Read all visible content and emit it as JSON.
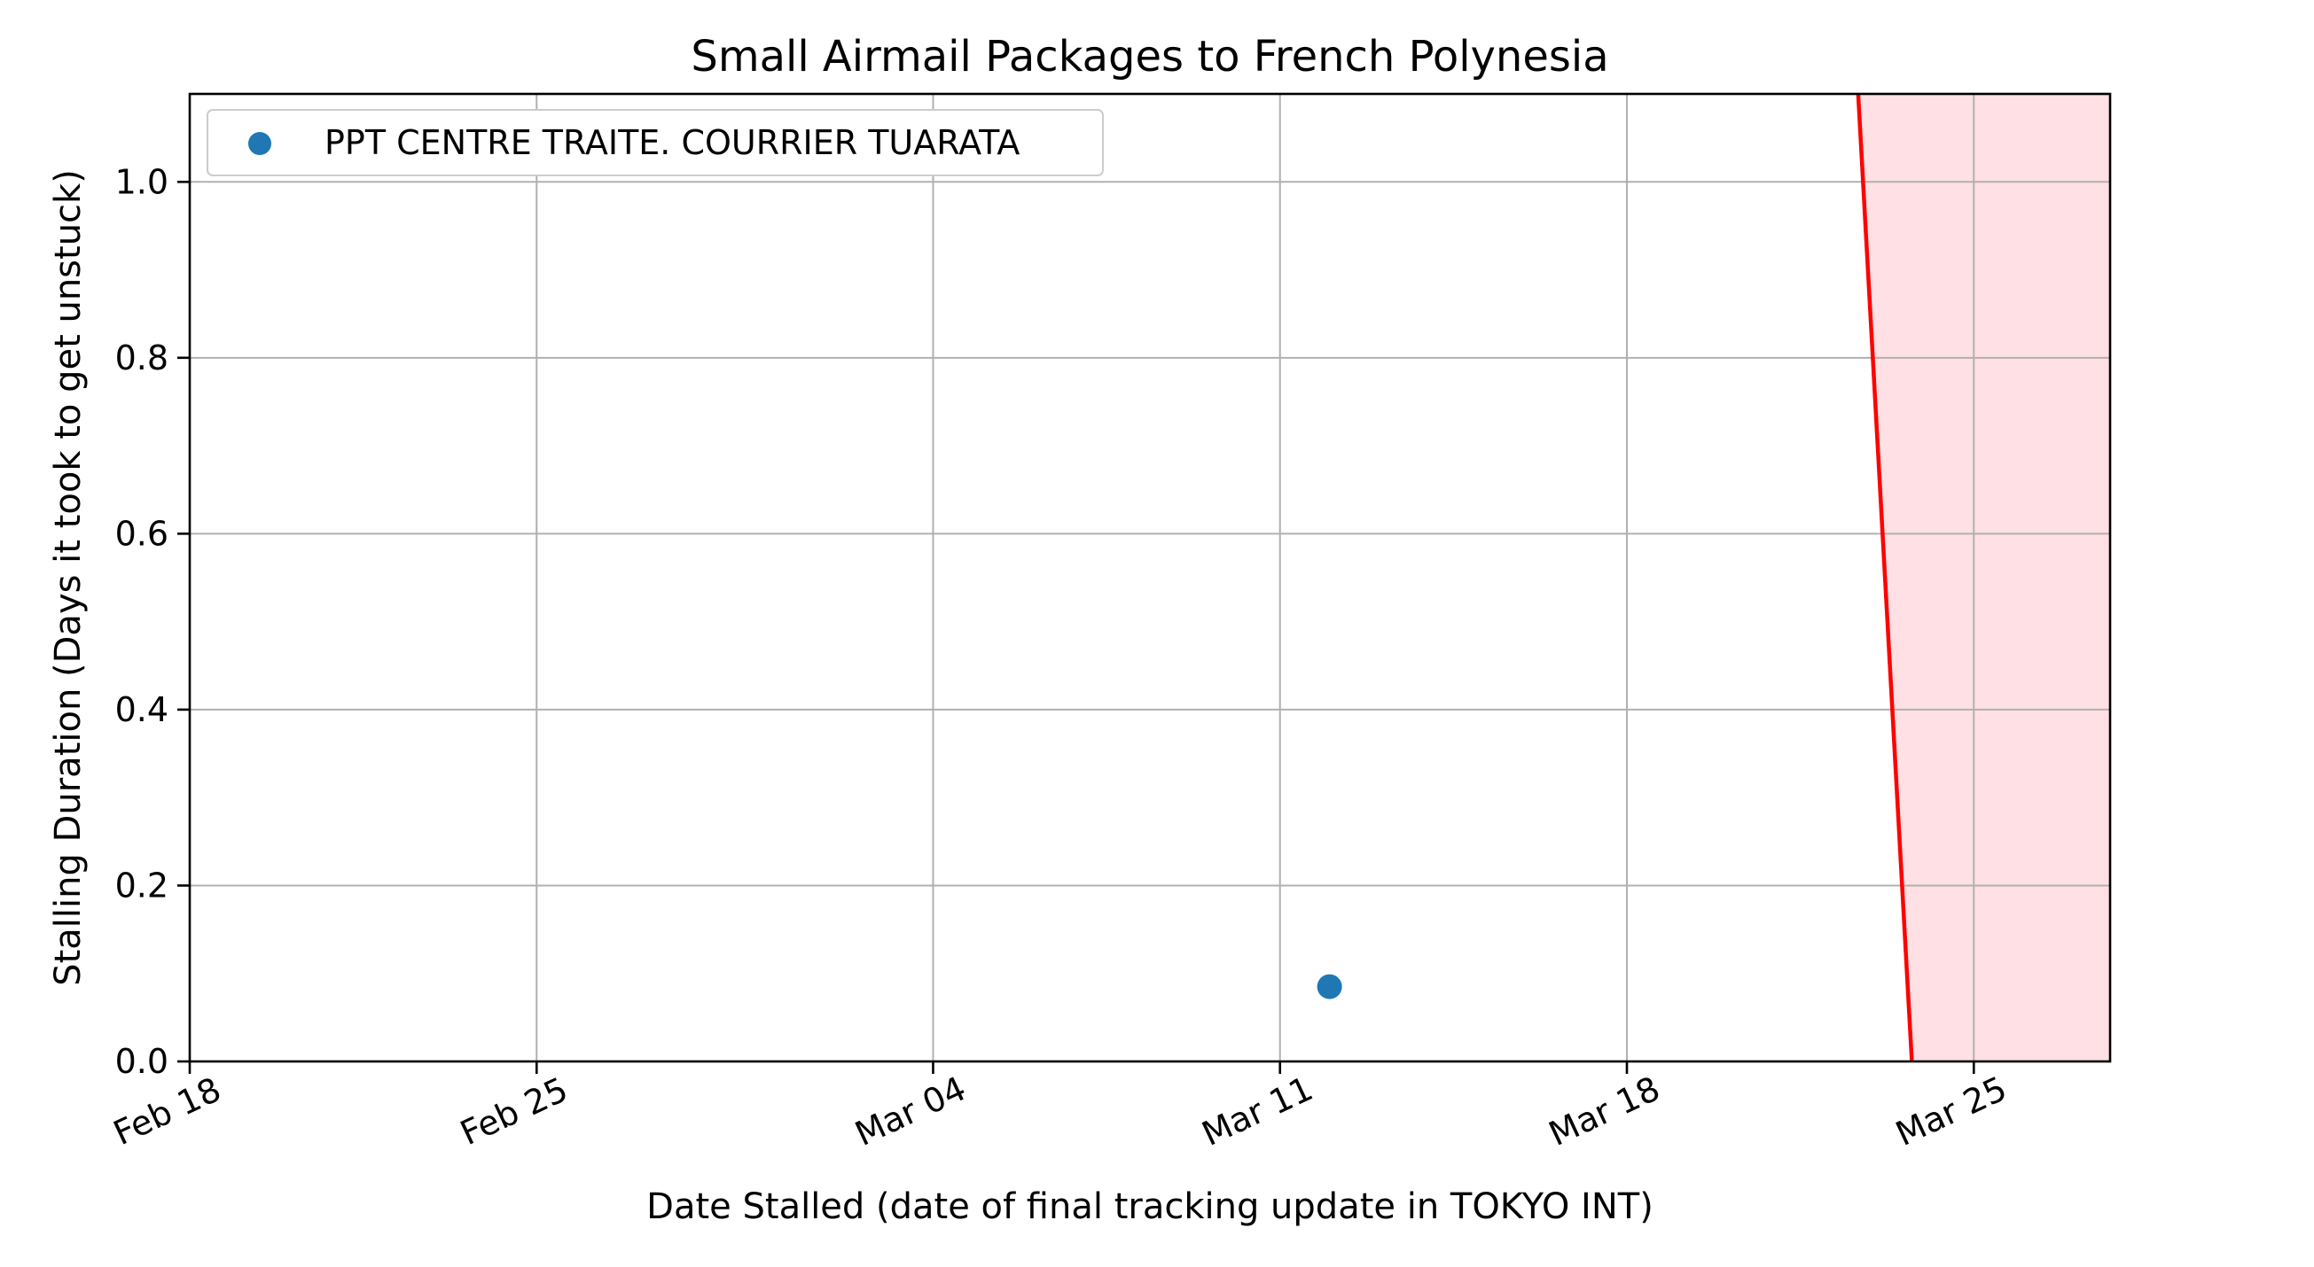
{
  "chart_data": {
    "type": "scatter",
    "title": "Small Airmail Packages to French Polynesia",
    "xlabel": "Date Stalled (date of final tracking update in TOKYO INT)",
    "ylabel": "Stalling Duration (Days it took to get unstuck)",
    "x_axis": "date",
    "xlim": [
      "2024-02-18",
      "2024-03-27 18:00"
    ],
    "ylim": [
      0,
      1.1
    ],
    "x_ticks": [
      {
        "date": "2024-02-18",
        "label": "Feb 18"
      },
      {
        "date": "2024-02-25",
        "label": "Feb 25"
      },
      {
        "date": "2024-03-04",
        "label": "Mar 04"
      },
      {
        "date": "2024-03-11",
        "label": "Mar 11"
      },
      {
        "date": "2024-03-18",
        "label": "Mar 18"
      },
      {
        "date": "2024-03-25",
        "label": "Mar 25"
      }
    ],
    "y_ticks": [
      {
        "value": 0.0,
        "label": "0.0"
      },
      {
        "value": 0.2,
        "label": "0.2"
      },
      {
        "value": 0.4,
        "label": "0.4"
      },
      {
        "value": 0.6,
        "label": "0.6"
      },
      {
        "value": 0.8,
        "label": "0.8"
      },
      {
        "value": 1.0,
        "label": "1.0"
      }
    ],
    "grid": true,
    "legend_position": "top-left",
    "series": [
      {
        "name": "PPT CENTRE TRAITE. COURRIER TUARATA",
        "color": "#1f77b4",
        "points": [
          {
            "x": "2024-03-12",
            "y": 0.085
          }
        ]
      }
    ],
    "reference_line": {
      "color": "#ff0000",
      "points": [
        {
          "x": "2024-03-22 16:00",
          "y": 1.1
        },
        {
          "x": "2024-03-23 18:00",
          "y": 0.0
        }
      ]
    },
    "shaded_region": {
      "color": "#ffe0e4"
    }
  }
}
